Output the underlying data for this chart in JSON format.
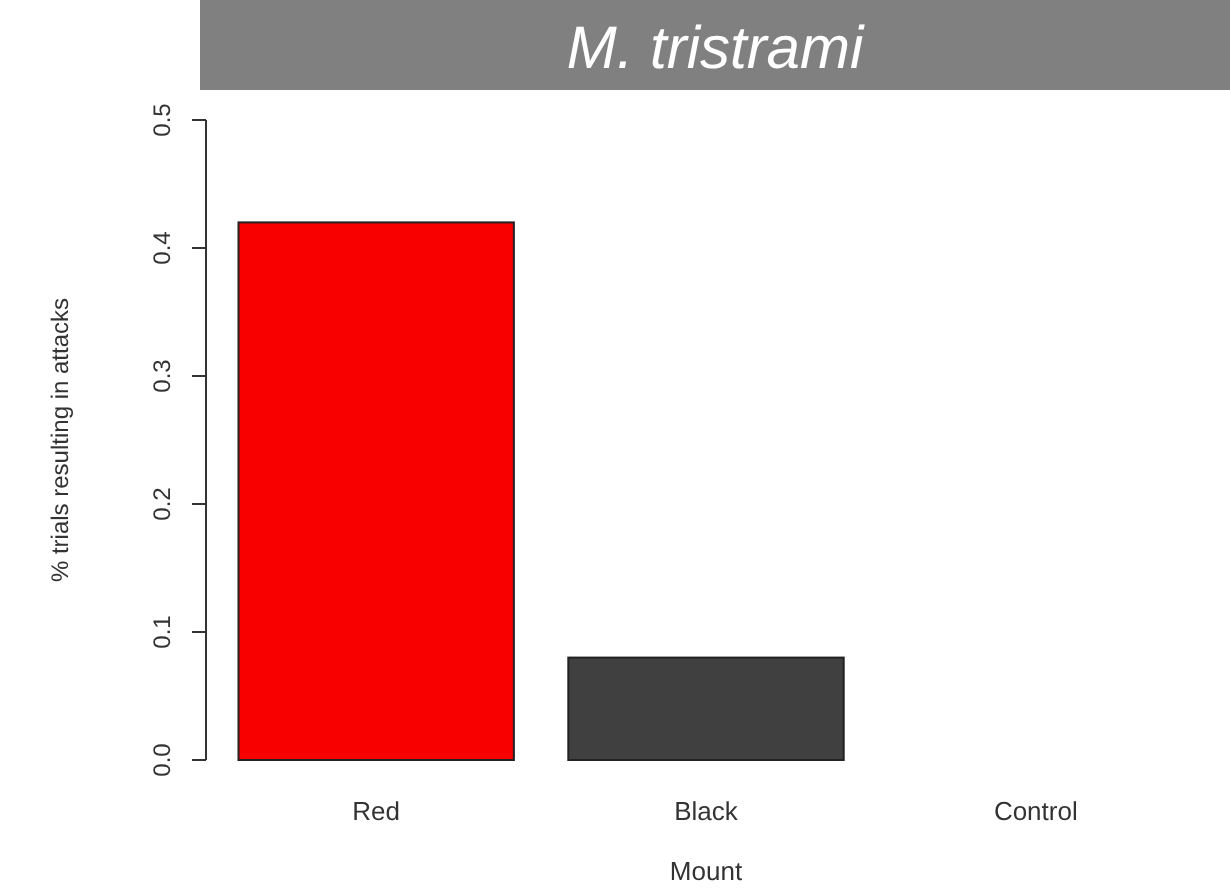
{
  "chart_data": {
    "type": "bar",
    "title": "M. tristrami",
    "xlabel": "Mount",
    "ylabel": "% trials resulting in attacks",
    "categories": [
      "Red",
      "Black",
      "Control"
    ],
    "values": [
      0.42,
      0.08,
      0
    ],
    "colors": [
      "#f90000",
      "#404040",
      "#404040"
    ],
    "ylim": [
      0,
      0.5
    ],
    "yticks": [
      {
        "value": 0,
        "label": "0.0"
      },
      {
        "value": 0.1,
        "label": "0.1"
      },
      {
        "value": 0.2,
        "label": "0.2"
      },
      {
        "value": 0.3,
        "label": "0.3"
      },
      {
        "value": 0.4,
        "label": "0.4"
      },
      {
        "value": 0.5,
        "label": "0.5"
      }
    ],
    "grid": false
  }
}
